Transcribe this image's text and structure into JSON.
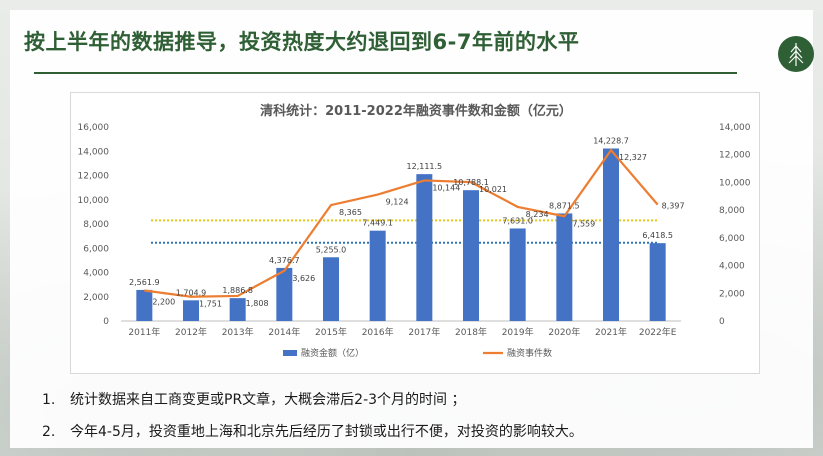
{
  "slide": {
    "title": "按上半年的数据推导，投资热度大约退回到6-7年前的水平",
    "logo_icon": "pine-tree-icon",
    "accent_color": "#2f5f34"
  },
  "notes": [
    {
      "num": "1.",
      "text": "统计数据来自工商变更或PR文章，大概会滞后2-3个月的时间 ；"
    },
    {
      "num": "2.",
      "text": "今年4-5月，投资重地上海和北京先后经历了封锁或出行不便，对投资的影响较大。"
    }
  ],
  "chart_data": {
    "type": "bar",
    "title": "清科统计：2011-2022年融资事件数和金额（亿元）",
    "categories": [
      "2011年",
      "2012年",
      "2013年",
      "2014年",
      "2015年",
      "2016年",
      "2017年",
      "2018年",
      "2019年",
      "2020年",
      "2021年",
      "2022年E"
    ],
    "series": [
      {
        "name": "融资金额（亿）",
        "type": "bar",
        "axis": "left",
        "color": "#4472c4",
        "values": [
          2561.9,
          1704.9,
          1886.8,
          4376.7,
          5255.0,
          7449.1,
          12111.5,
          10788.1,
          7631.0,
          8871.5,
          14228.7,
          6418.5
        ],
        "labels": [
          "2,561.9",
          "1,704.9",
          "1,886.8",
          "4,376.7",
          "5,255.0",
          "7,449.1",
          "12,111.5",
          "10,788.1",
          "7,631.0",
          "8,871.5",
          "14,228.7",
          "6,418.5"
        ]
      },
      {
        "name": "融资事件数",
        "type": "line",
        "axis": "right",
        "color": "#ed7d31",
        "values": [
          2200,
          1751,
          1808,
          3626,
          8365,
          9124,
          10144,
          10021,
          8234,
          7559,
          12327,
          8397
        ],
        "labels": [
          "2,200",
          "1,751",
          "1,808",
          "3,626",
          "8,365",
          "9,124",
          "10,144",
          "10,021",
          "8,234",
          "7,559",
          "12,327",
          "8,397"
        ]
      }
    ],
    "y_left": {
      "min": 0,
      "max": 16000,
      "ticks": [
        "0",
        "2,000",
        "4,000",
        "6,000",
        "8,000",
        "10,000",
        "12,000",
        "14,000",
        "16,000"
      ]
    },
    "y_right": {
      "min": 0,
      "max": 14000,
      "ticks": [
        "0",
        "2,000",
        "4,000",
        "6,000",
        "8,000",
        "10,000",
        "12,000",
        "14,000"
      ]
    },
    "reference_lines": [
      {
        "axis": "left",
        "value": 8300,
        "color": "#e6c619",
        "style": "dotted"
      },
      {
        "axis": "left",
        "value": 6450,
        "color": "#2e75b6",
        "style": "dotted"
      }
    ],
    "grid": false,
    "legend_position": "bottom"
  }
}
